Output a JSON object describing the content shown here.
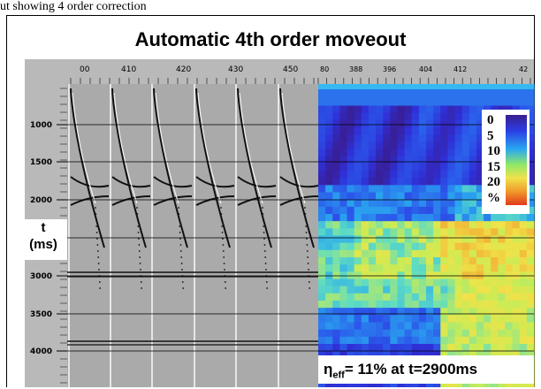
{
  "caption": "ut showing 4 order correction",
  "title": "Automatic 4th order moveout",
  "gather_panel": {
    "x_ticks": [
      "00",
      "410",
      "420",
      "430",
      "450"
    ],
    "y_ticks": [
      "1000",
      "1500",
      "2000",
      "3000",
      "3500",
      "4000"
    ]
  },
  "velocity_panel": {
    "x_ticks": [
      "80",
      "388",
      "396",
      "404",
      "412",
      "42"
    ]
  },
  "axis_label": {
    "line1": "t",
    "line2": "(ms)"
  },
  "legend": {
    "values": [
      "0",
      "5",
      "10",
      "15",
      "20",
      "%"
    ],
    "colors": [
      "#3a1d8f",
      "#2b3fe6",
      "#2aa8f0",
      "#8ee868",
      "#f0e24a",
      "#f09a2a",
      "#e2391c"
    ]
  },
  "annotation": {
    "symbol": "η",
    "subscript": "eff",
    "text": "= 11% at t=2900ms"
  },
  "colors": {
    "frame": "#000000",
    "ruler": "#b9b9b9",
    "panel_gray": "#aaaaaa"
  }
}
